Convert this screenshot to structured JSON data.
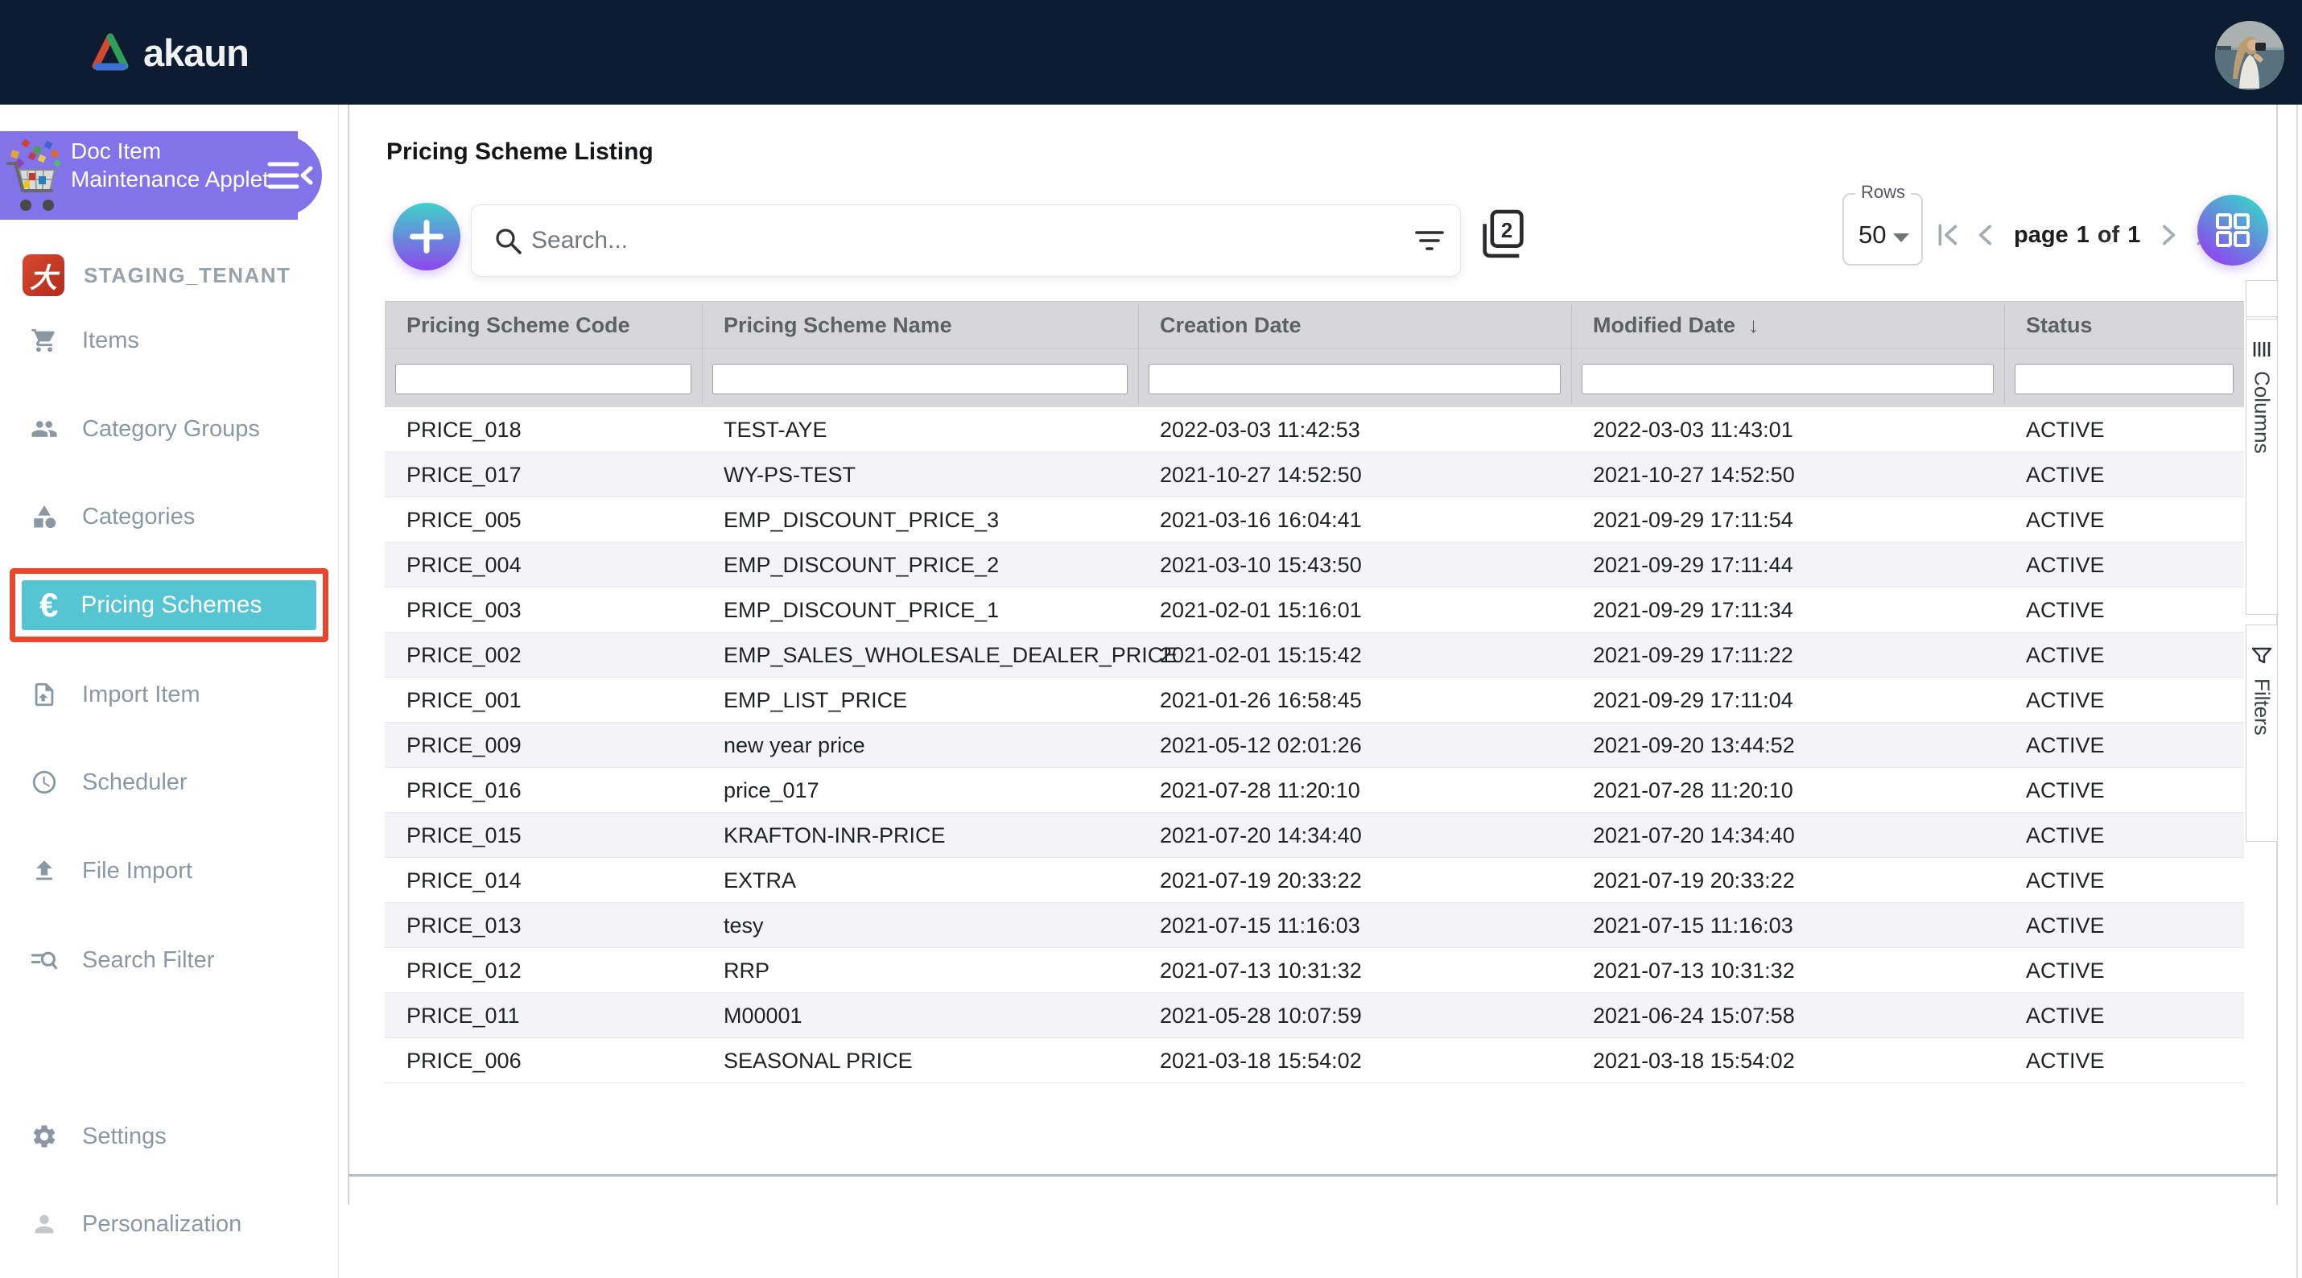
{
  "navbar": {
    "brand": "akaun"
  },
  "sidebar": {
    "applet_title": "Doc Item Maintenance Applet",
    "tenant": "STAGING_TENANT",
    "tenant_icon_glyph": "大",
    "items": [
      {
        "icon": "cart-icon",
        "label": "Items"
      },
      {
        "icon": "group-icon",
        "label": "Category Groups"
      },
      {
        "icon": "category-icon",
        "label": "Categories"
      },
      {
        "icon": "euro-icon",
        "icon_glyph": "€",
        "label": "Pricing Schemes",
        "selected": true
      },
      {
        "icon": "import-item-icon",
        "label": "Import Item"
      },
      {
        "icon": "scheduler-icon",
        "label": "Scheduler"
      },
      {
        "icon": "file-import-icon",
        "label": "File Import"
      },
      {
        "icon": "search-filter-icon",
        "label": "Search Filter"
      }
    ],
    "footer_items": [
      {
        "icon": "settings-icon",
        "label": "Settings"
      },
      {
        "icon": "person-icon",
        "label": "Personalization"
      }
    ]
  },
  "main": {
    "title": "Pricing Scheme Listing",
    "search_placeholder": "Search...",
    "toolbar": {
      "pages_icon_number": "2"
    },
    "rows_selector": {
      "label": "Rows",
      "value": "50"
    },
    "pagination": {
      "word": "page",
      "current": "1",
      "of": "of",
      "total": "1"
    },
    "side_tabs": {
      "columns": "Columns",
      "filters": "Filters"
    },
    "table": {
      "columns": [
        "Pricing Scheme Code",
        "Pricing Scheme Name",
        "Creation Date",
        "Modified Date",
        "Status"
      ],
      "sort": {
        "column": "Modified Date",
        "direction": "desc",
        "indicator": "↓"
      },
      "rows": [
        [
          "PRICE_018",
          "TEST-AYE",
          "2022-03-03 11:42:53",
          "2022-03-03 11:43:01",
          "ACTIVE"
        ],
        [
          "PRICE_017",
          "WY-PS-TEST",
          "2021-10-27 14:52:50",
          "2021-10-27 14:52:50",
          "ACTIVE"
        ],
        [
          "PRICE_005",
          "EMP_DISCOUNT_PRICE_3",
          "2021-03-16 16:04:41",
          "2021-09-29 17:11:54",
          "ACTIVE"
        ],
        [
          "PRICE_004",
          "EMP_DISCOUNT_PRICE_2",
          "2021-03-10 15:43:50",
          "2021-09-29 17:11:44",
          "ACTIVE"
        ],
        [
          "PRICE_003",
          "EMP_DISCOUNT_PRICE_1",
          "2021-02-01 15:16:01",
          "2021-09-29 17:11:34",
          "ACTIVE"
        ],
        [
          "PRICE_002",
          "EMP_SALES_WHOLESALE_DEALER_PRICE",
          "2021-02-01 15:15:42",
          "2021-09-29 17:11:22",
          "ACTIVE"
        ],
        [
          "PRICE_001",
          "EMP_LIST_PRICE",
          "2021-01-26 16:58:45",
          "2021-09-29 17:11:04",
          "ACTIVE"
        ],
        [
          "PRICE_009",
          "new year price",
          "2021-05-12 02:01:26",
          "2021-09-20 13:44:52",
          "ACTIVE"
        ],
        [
          "PRICE_016",
          "price_017",
          "2021-07-28 11:20:10",
          "2021-07-28 11:20:10",
          "ACTIVE"
        ],
        [
          "PRICE_015",
          "KRAFTON-INR-PRICE",
          "2021-07-20 14:34:40",
          "2021-07-20 14:34:40",
          "ACTIVE"
        ],
        [
          "PRICE_014",
          "EXTRA",
          "2021-07-19 20:33:22",
          "2021-07-19 20:33:22",
          "ACTIVE"
        ],
        [
          "PRICE_013",
          "tesy",
          "2021-07-15 11:16:03",
          "2021-07-15 11:16:03",
          "ACTIVE"
        ],
        [
          "PRICE_012",
          "RRP",
          "2021-07-13 10:31:32",
          "2021-07-13 10:31:32",
          "ACTIVE"
        ],
        [
          "PRICE_011",
          "M00001",
          "2021-05-28 10:07:59",
          "2021-06-24 15:07:58",
          "ACTIVE"
        ],
        [
          "PRICE_006",
          "SEASONAL PRICE",
          "2021-03-18 15:54:02",
          "2021-03-18 15:54:02",
          "ACTIVE"
        ]
      ]
    }
  },
  "colors": {
    "navbar_bg": "#0e1c31",
    "applet_header_bg": "#8273e9",
    "selected_item_bg": "#56c5d3",
    "selection_outline": "#e8472b",
    "button_gradient_start": "#40d2cb",
    "button_gradient_end": "#8d47ec",
    "table_header_bg": "#d7d7d9",
    "row_alt_bg": "#f4f4f6"
  }
}
